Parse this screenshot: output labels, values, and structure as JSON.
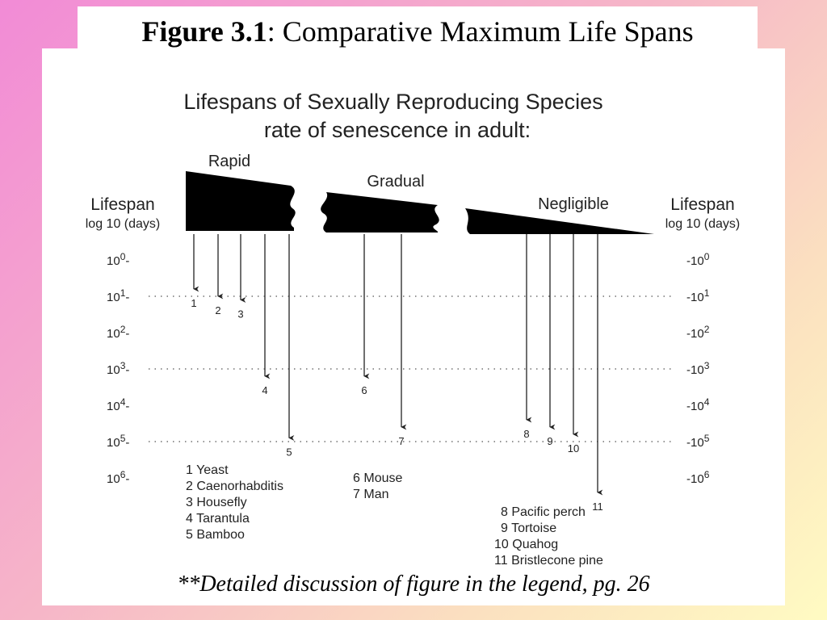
{
  "figure_title": {
    "label": "Figure 3.1",
    "text": ": Comparative Maximum Life Spans"
  },
  "footnote": "**Detailed discussion of figure in the legend, pg. 26",
  "chart_data": {
    "type": "diagram",
    "title": "Lifespans of Sexually Reproducing Species",
    "subtitle": "rate of senescence in adult:",
    "axis_left_label": [
      "Lifespan",
      "log 10 (days)"
    ],
    "axis_right_label": [
      "Lifespan",
      "log 10 (days)"
    ],
    "y_scale": "log10",
    "ticks_exponents": [
      0,
      1,
      2,
      3,
      4,
      5,
      6
    ],
    "groups": [
      {
        "name": "Rapid",
        "species": [
          1,
          2,
          3,
          4,
          5
        ]
      },
      {
        "name": "Gradual",
        "species": [
          6,
          7
        ]
      },
      {
        "name": "Negligible",
        "species": [
          8,
          9,
          10,
          11
        ]
      }
    ],
    "species": [
      {
        "id": "1",
        "name": "Yeast",
        "group": "Rapid",
        "log_days": 0.8
      },
      {
        "id": "2",
        "name": "Caenorhabditis",
        "group": "Rapid",
        "log_days": 1.0
      },
      {
        "id": "3",
        "name": "Housefly",
        "group": "Rapid",
        "log_days": 1.1
      },
      {
        "id": "4",
        "name": "Tarantula",
        "group": "Rapid",
        "log_days": 3.2
      },
      {
        "id": "5",
        "name": "Bamboo",
        "group": "Rapid",
        "log_days": 4.9
      },
      {
        "id": "6",
        "name": "Mouse",
        "group": "Gradual",
        "log_days": 3.2
      },
      {
        "id": "7",
        "name": "Man",
        "group": "Gradual",
        "log_days": 4.6
      },
      {
        "id": "8",
        "name": "Pacific perch",
        "group": "Negligible",
        "log_days": 4.4
      },
      {
        "id": "9",
        "name": "Tortoise",
        "group": "Negligible",
        "log_days": 4.6
      },
      {
        "id": "10",
        "name": "Quahog",
        "group": "Negligible",
        "log_days": 4.8
      },
      {
        "id": "11",
        "name": "Bristlecone pine",
        "group": "Negligible",
        "log_days": 6.4
      }
    ],
    "dotted_gridlines_at": [
      1,
      3,
      5
    ]
  }
}
